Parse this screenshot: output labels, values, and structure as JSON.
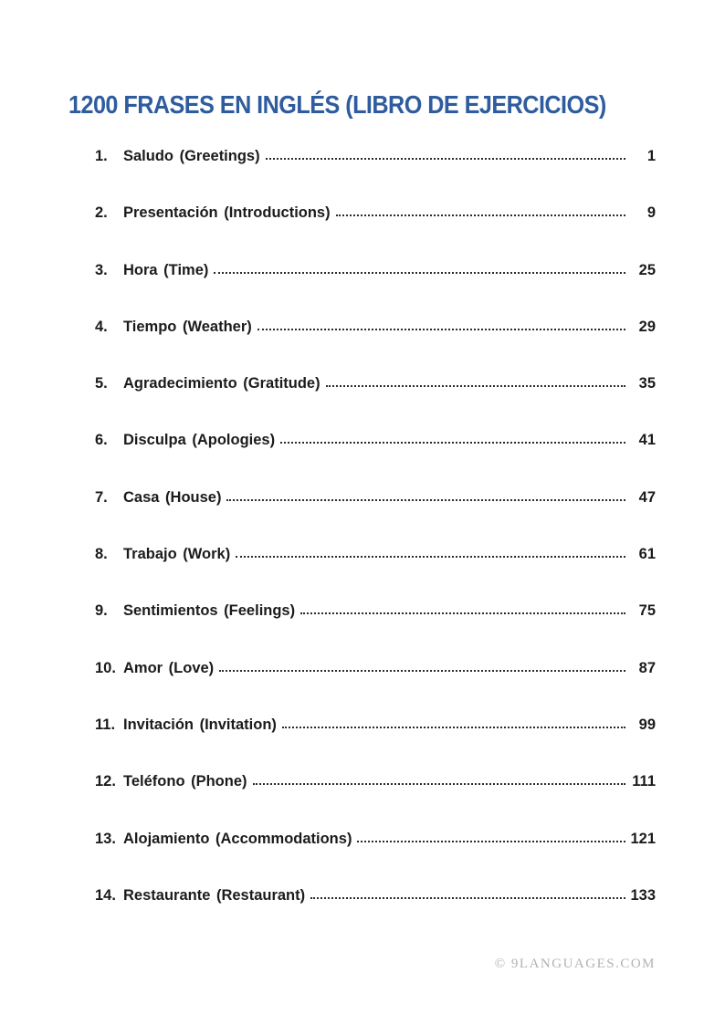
{
  "page": {
    "title": "1200 FRASES EN INGLÉS (LIBRO DE EJERCICIOS)",
    "title_color": "#2e5c9e",
    "text_color": "#1b1b1b",
    "background_color": "#ffffff"
  },
  "toc": {
    "entries": [
      {
        "num": "1.",
        "label": "Saludo (Greetings)",
        "page": "1"
      },
      {
        "num": "2.",
        "label": "Presentación (Introductions)",
        "page": "9"
      },
      {
        "num": "3.",
        "label": "Hora (Time)",
        "page": "25"
      },
      {
        "num": "4.",
        "label": "Tiempo (Weather)",
        "page": "29"
      },
      {
        "num": "5.",
        "label": "Agradecimiento (Gratitude)",
        "page": "35"
      },
      {
        "num": "6.",
        "label": "Disculpa (Apologies)",
        "page": "41"
      },
      {
        "num": "7.",
        "label": "Casa (House)",
        "page": "47"
      },
      {
        "num": "8.",
        "label": "Trabajo (Work)",
        "page": "61"
      },
      {
        "num": "9.",
        "label": "Sentimientos (Feelings)",
        "page": "75"
      },
      {
        "num": "10.",
        "label": "Amor (Love)",
        "page": "87"
      },
      {
        "num": "11.",
        "label": "Invitación (Invitation)",
        "page": "99"
      },
      {
        "num": "12.",
        "label": "Teléfono (Phone)",
        "page": "111"
      },
      {
        "num": "13.",
        "label": "Alojamiento (Accommodations)",
        "page": "121"
      },
      {
        "num": "14.",
        "label": "Restaurante (Restaurant)",
        "page": "133"
      }
    ]
  },
  "footer": {
    "credit": "© 9LANGUAGES.COM",
    "credit_color": "#b2b2b2"
  }
}
